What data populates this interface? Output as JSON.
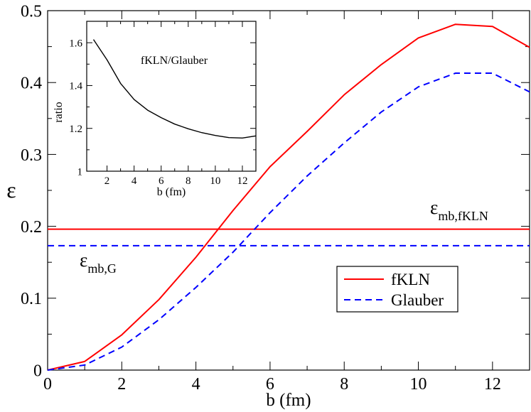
{
  "chart_data": [
    {
      "type": "line",
      "title": "",
      "xlabel": "b (fm)",
      "ylabel": "ε",
      "xlim": [
        0,
        13
      ],
      "ylim": [
        0,
        0.5
      ],
      "xticks": [
        0,
        2,
        4,
        6,
        8,
        10,
        12
      ],
      "yticks": [
        0,
        0.1,
        0.2,
        0.3,
        0.4,
        0.5
      ],
      "xtick_labels": [
        "0",
        "2",
        "4",
        "6",
        "8",
        "10",
        "12"
      ],
      "ytick_labels": [
        "0",
        "0.1",
        "0.2",
        "0.3",
        "0.4",
        "0.5"
      ],
      "grid": false,
      "legend": {
        "position": "bottom-right",
        "entries": [
          "fKLN",
          "Glauber"
        ]
      },
      "series": [
        {
          "name": "fKLN",
          "color": "#ff0000",
          "style": "solid",
          "x": [
            0,
            1,
            2,
            3,
            4,
            5,
            6,
            7,
            8,
            9,
            10,
            11,
            12,
            13
          ],
          "y": [
            0,
            0.012,
            0.049,
            0.098,
            0.157,
            0.222,
            0.283,
            0.332,
            0.383,
            0.425,
            0.462,
            0.481,
            0.478,
            0.449
          ]
        },
        {
          "name": "Glauber",
          "color": "#0000ff",
          "style": "dashed",
          "x": [
            0,
            1,
            2,
            3,
            4,
            5,
            6,
            7,
            8,
            9,
            10,
            11,
            12,
            13
          ],
          "y": [
            0,
            0.007,
            0.032,
            0.07,
            0.115,
            0.164,
            0.219,
            0.27,
            0.316,
            0.359,
            0.394,
            0.413,
            0.413,
            0.387
          ]
        }
      ],
      "hlines": [
        {
          "name": "εmb,fKLN",
          "y": 0.196,
          "color": "#ff0000",
          "style": "solid"
        },
        {
          "name": "εmb,G",
          "y": 0.173,
          "color": "#0000ff",
          "style": "dashed"
        }
      ],
      "annotations": [
        {
          "id": "fkln",
          "symbol": "ε",
          "subscript": "mb,fKLN"
        },
        {
          "id": "glauber",
          "symbol": "ε",
          "subscript": "mb,G"
        }
      ]
    },
    {
      "type": "line",
      "title": "fKLN/Glauber",
      "xlabel": "b (fm)",
      "ylabel": "ratio",
      "xlim": [
        0.5,
        13
      ],
      "ylim": [
        1,
        1.7
      ],
      "xticks": [
        2,
        4,
        6,
        8,
        10,
        12
      ],
      "yticks": [
        1,
        1.2,
        1.4,
        1.6
      ],
      "xtick_labels": [
        "2",
        "4",
        "6",
        "8",
        "10",
        "12"
      ],
      "ytick_labels": [
        "1",
        "1.2",
        "1.4",
        "1.6"
      ],
      "grid": false,
      "series": [
        {
          "name": "fKLN/Glauber",
          "color": "#000000",
          "style": "solid",
          "x": [
            1,
            2,
            3,
            4,
            5,
            6,
            7,
            8,
            9,
            10,
            11,
            12,
            13
          ],
          "y": [
            1.615,
            1.52,
            1.41,
            1.335,
            1.285,
            1.25,
            1.22,
            1.198,
            1.18,
            1.167,
            1.157,
            1.155,
            1.165
          ]
        }
      ]
    }
  ]
}
